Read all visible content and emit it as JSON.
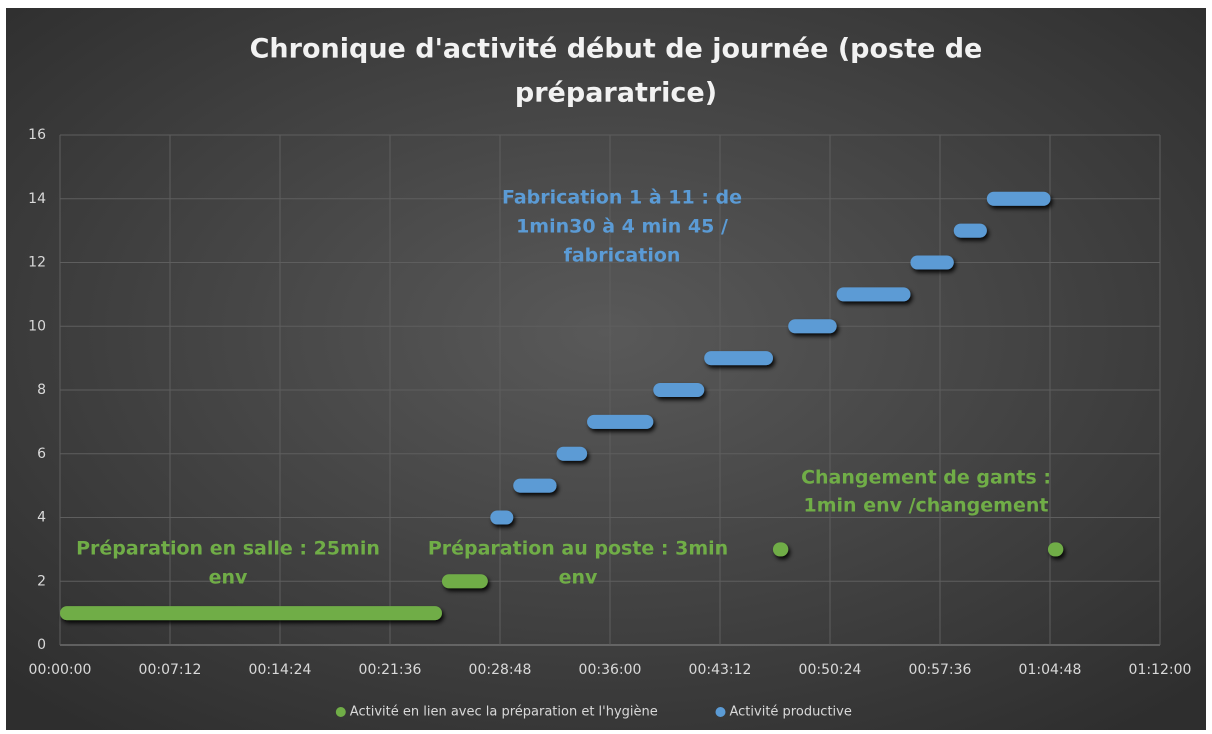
{
  "chart_data": {
    "type": "gantt",
    "title_lines": [
      "Chronique d'activité début de journée (poste de",
      "préparatrice)"
    ],
    "xlim": [
      0,
      4320
    ],
    "xticks": [
      {
        "value": 0,
        "label": "00:00:00"
      },
      {
        "value": 432,
        "label": "00:07:12"
      },
      {
        "value": 864,
        "label": "00:14:24"
      },
      {
        "value": 1296,
        "label": "00:21:36"
      },
      {
        "value": 1728,
        "label": "00:28:48"
      },
      {
        "value": 2160,
        "label": "00:36:00"
      },
      {
        "value": 2592,
        "label": "00:43:12"
      },
      {
        "value": 3024,
        "label": "00:50:24"
      },
      {
        "value": 3456,
        "label": "00:57:36"
      },
      {
        "value": 3888,
        "label": "01:04:48"
      },
      {
        "value": 4320,
        "label": "01:12:00"
      }
    ],
    "ylim": [
      0,
      16
    ],
    "yticks": [
      0,
      2,
      4,
      6,
      8,
      10,
      12,
      14,
      16
    ],
    "grid": true,
    "legend": "bottom",
    "series": [
      {
        "name": "Activité en lien avec la préparation et l'hygiène",
        "color": "#70ad47",
        "values": [
          1,
          2,
          3,
          3
        ],
        "start": [
          0,
          1500,
          2800,
          3880
        ],
        "end": [
          1500,
          1680,
          2860,
          3940
        ]
      },
      {
        "name": "Activité productive",
        "color": "#5b9bd5",
        "values": [
          4,
          5,
          6,
          7,
          8,
          9,
          10,
          11,
          12,
          13,
          14
        ],
        "start": [
          1690,
          1780,
          1950,
          2070,
          2330,
          2530,
          2860,
          3050,
          3340,
          3510,
          3640
        ],
        "end": [
          1780,
          1950,
          2070,
          2330,
          2530,
          2800,
          3050,
          3340,
          3510,
          3640,
          3890
        ]
      }
    ],
    "annotations": [
      {
        "lines": [
          "Fabrication 1 à 11 : de",
          "1min30 à 4 min 45 /",
          "fabrication"
        ],
        "color": "#5b9bd5"
      },
      {
        "lines": [
          "Préparation en salle : 25min",
          "env"
        ],
        "color": "#70ad47"
      },
      {
        "lines": [
          "Préparation au poste : 3min",
          "env"
        ],
        "color": "#70ad47"
      },
      {
        "lines": [
          "Changement de gants :",
          "1min env /changement"
        ],
        "color": "#70ad47"
      }
    ]
  }
}
